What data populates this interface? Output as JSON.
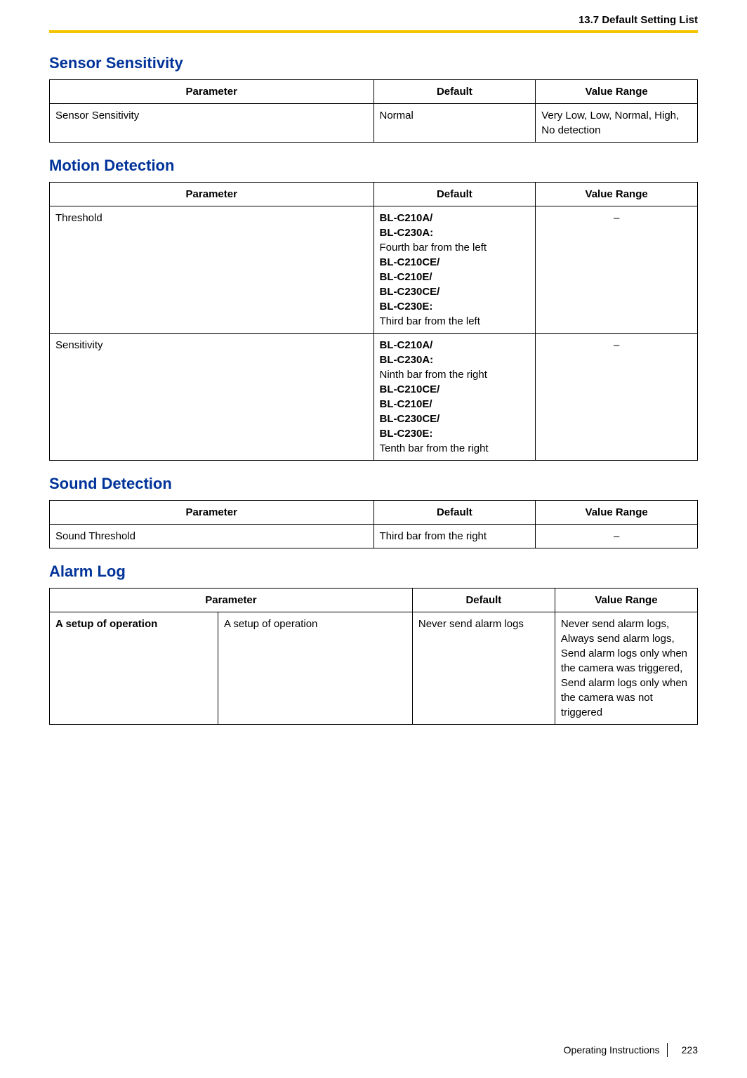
{
  "header": {
    "breadcrumb": "13.7 Default Setting List"
  },
  "sections": {
    "sensor": {
      "title": "Sensor Sensitivity",
      "headers": [
        "Parameter",
        "Default",
        "Value Range"
      ],
      "rows": [
        {
          "param": "Sensor Sensitivity",
          "default": "Normal",
          "range": "Very Low, Low, Normal, High, No detection"
        }
      ]
    },
    "motion": {
      "title": "Motion Detection",
      "headers": [
        "Parameter",
        "Default",
        "Value Range"
      ],
      "rows": [
        {
          "param": "Threshold",
          "default_b1": "BL-C210A/",
          "default_b2": "BL-C230A:",
          "default_t1": "Fourth bar from the left",
          "default_b3": "BL-C210CE/",
          "default_b4": "BL-C210E/",
          "default_b5": "BL-C230CE/",
          "default_b6": "BL-C230E:",
          "default_t2": "Third bar from the left",
          "range": "–"
        },
        {
          "param": "Sensitivity",
          "default_b1": "BL-C210A/",
          "default_b2": "BL-C230A:",
          "default_t1": "Ninth bar from the right",
          "default_b3": "BL-C210CE/",
          "default_b4": "BL-C210E/",
          "default_b5": "BL-C230CE/",
          "default_b6": "BL-C230E:",
          "default_t2": "Tenth bar from the right",
          "range": "–"
        }
      ]
    },
    "sound": {
      "title": "Sound Detection",
      "headers": [
        "Parameter",
        "Default",
        "Value Range"
      ],
      "rows": [
        {
          "param": "Sound Threshold",
          "default": "Third bar from the right",
          "range": "–"
        }
      ]
    },
    "alarm": {
      "title": "Alarm Log",
      "headers": [
        "Parameter",
        "Default",
        "Value Range"
      ],
      "rows": [
        {
          "param1": "A setup of operation",
          "param2": "A setup of operation",
          "default": "Never send alarm logs",
          "range": "Never send alarm logs,\nAlways send alarm logs,\nSend alarm logs only when the camera was triggered,\nSend alarm logs only when the camera was not triggered"
        }
      ]
    }
  },
  "footer": {
    "label": "Operating Instructions",
    "page": "223"
  }
}
